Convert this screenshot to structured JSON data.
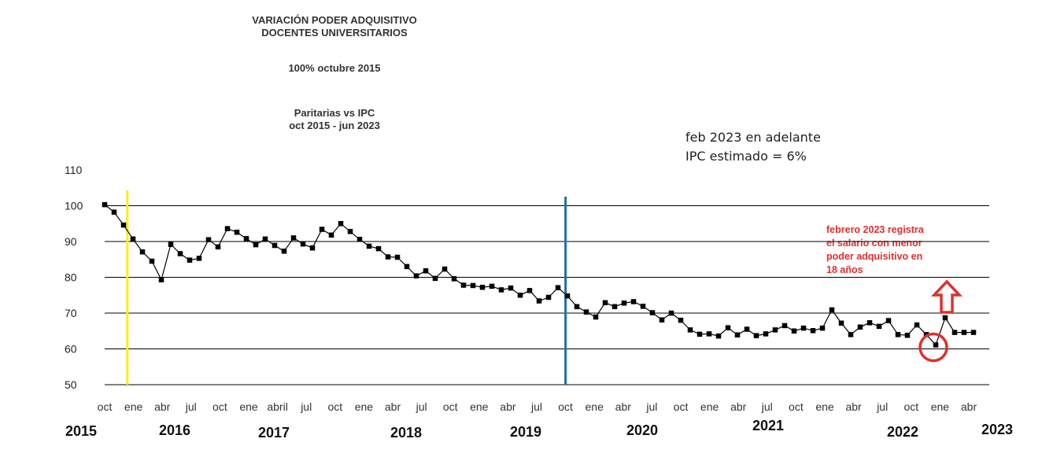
{
  "title": {
    "line1": "VARIACIÓN PODER ADQUISITIVO",
    "line2": "DOCENTES UNIVERSITARIOS",
    "base": "100% octubre 2015",
    "subtitle1": "Paritarias vs IPC",
    "subtitle2": "oct 2015  -  jun 2023"
  },
  "note": {
    "line1": "feb 2023 en adelante",
    "line2": "IPC estimado  = 6%"
  },
  "annotation": {
    "line1": "febrero 2023 registra",
    "line2": "el salario con menor",
    "line3": "poder adquisitivo en",
    "line4": "18 años"
  },
  "colors": {
    "series": "#000000",
    "yellow_line": "#ffec1a",
    "blue_line": "#1f6fb0",
    "annotation": "#e0302c",
    "grid": "#000000"
  },
  "chart_data": {
    "type": "line",
    "title": "VARIACIÓN PODER ADQUISITIVO DOCENTES UNIVERSITARIOS",
    "xlabel": "",
    "ylabel": "",
    "ylim": [
      50,
      110
    ],
    "yticks": [
      50,
      60,
      70,
      80,
      90,
      100,
      110
    ],
    "grid": true,
    "x_tick_labels": [
      "oct",
      "ene",
      "abr",
      "jul",
      "oct",
      "ene",
      "abril",
      "jul",
      "oct",
      "ene",
      "abr",
      "jul",
      "oct",
      "ene",
      "abr",
      "jul",
      "oct",
      "ene",
      "abr",
      "jul",
      "oct",
      "ene",
      "abr",
      "jul",
      "oct",
      "ene",
      "abr",
      "jul",
      "oct",
      "ene",
      "abr"
    ],
    "year_labels": [
      "2015",
      "2016",
      "2017",
      "2018",
      "2019",
      "2020",
      "2021",
      "2022",
      "2023"
    ],
    "series": [
      {
        "values": [
          100.3,
          98.2,
          94.6,
          90.7,
          87.1,
          84.5,
          79.3,
          89.2,
          86.6,
          84.8,
          85.3,
          90.5,
          88.5,
          93.6,
          92.6,
          90.8,
          89.1,
          90.7,
          88.9,
          87.3,
          91.0,
          89.3,
          88.2,
          93.4,
          91.8,
          95.0,
          92.8,
          90.6,
          88.7,
          88.0,
          85.7,
          85.6,
          83.0,
          80.4,
          81.8,
          79.7,
          82.3,
          79.6,
          77.8,
          77.7,
          77.2,
          77.5,
          76.5,
          77.0,
          75.0,
          76.3,
          73.4,
          74.4,
          77.1,
          74.8,
          71.8,
          70.3,
          68.9,
          72.9,
          71.8,
          72.8,
          73.2,
          71.9,
          70.1,
          68.1,
          70.0,
          68.0,
          65.3,
          64.1,
          64.2,
          63.6,
          65.9,
          63.9,
          65.5,
          63.7,
          64.2,
          65.3,
          66.5,
          65.0,
          65.8,
          65.1,
          65.8,
          70.9,
          67.2,
          64.0,
          66.1,
          67.3,
          66.3,
          67.9,
          64.0,
          63.8,
          66.7,
          64.0,
          61.1,
          68.7,
          64.6,
          64.6,
          64.6
        ]
      }
    ],
    "vertical_markers": [
      {
        "after_index": 2.4,
        "color": "yellow"
      },
      {
        "after_index": 48.8,
        "color": "blue"
      }
    ],
    "highlight_index": 88
  }
}
